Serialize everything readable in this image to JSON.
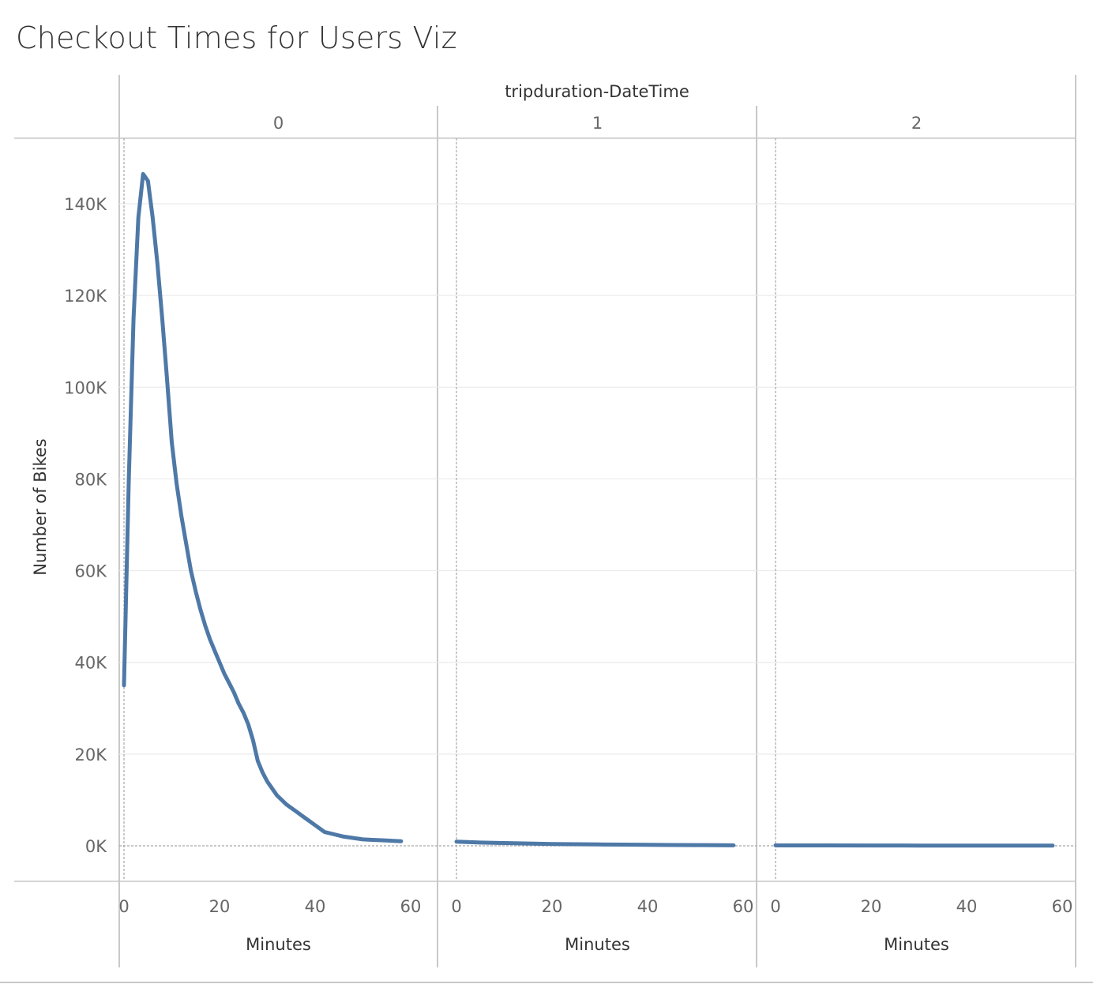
{
  "title": "Checkout Times for Users Viz",
  "chart_data": {
    "type": "line",
    "title": "Checkout Times for Users Viz",
    "column_header": "tripduration-DateTime",
    "ylabel": "Number of Bikes",
    "xlabel": "Minutes",
    "ylim": [
      0,
      150000
    ],
    "y_ticks": [
      0,
      20000,
      40000,
      60000,
      80000,
      100000,
      120000,
      140000
    ],
    "y_tick_labels": [
      "0K",
      "20K",
      "40K",
      "60K",
      "80K",
      "100K",
      "120K",
      "140K"
    ],
    "x_ticks": [
      0,
      20,
      40,
      60
    ],
    "x_tick_labels": [
      "0",
      "20",
      "40",
      "60"
    ],
    "xlim": [
      0,
      60
    ],
    "grid": true,
    "color": "#4e79a7",
    "panels": [
      {
        "label": "0",
        "x": [
          0,
          1,
          2,
          3,
          4,
          5,
          6,
          7,
          8,
          9,
          10,
          11,
          12,
          13,
          14,
          15,
          16,
          17,
          18,
          19,
          20,
          21,
          22,
          23,
          24,
          25,
          26,
          27,
          28,
          29,
          30,
          32,
          34,
          36,
          38,
          40,
          42,
          44,
          46,
          48,
          50,
          52,
          54,
          56,
          58
        ],
        "y": [
          35000,
          80000,
          115000,
          137000,
          146500,
          145000,
          137000,
          127000,
          115000,
          102000,
          88000,
          79000,
          72000,
          66000,
          60000,
          55500,
          51500,
          48000,
          45000,
          42500,
          40000,
          37500,
          35500,
          33500,
          31000,
          29000,
          26500,
          23000,
          18500,
          16000,
          14000,
          11000,
          9000,
          7500,
          6000,
          4500,
          3000,
          2500,
          2000,
          1700,
          1400,
          1300,
          1200,
          1100,
          1000
        ],
        "xlabel": "Minutes"
      },
      {
        "label": "1",
        "x": [
          0,
          5,
          10,
          15,
          20,
          25,
          30,
          35,
          40,
          45,
          50,
          55,
          58
        ],
        "y": [
          900,
          700,
          600,
          500,
          400,
          350,
          300,
          250,
          200,
          180,
          150,
          120,
          100
        ],
        "xlabel": "Minutes"
      },
      {
        "label": "2",
        "x": [
          0,
          10,
          20,
          30,
          40,
          50,
          58
        ],
        "y": [
          90,
          80,
          70,
          60,
          50,
          40,
          30
        ],
        "xlabel": "Minutes"
      }
    ]
  }
}
